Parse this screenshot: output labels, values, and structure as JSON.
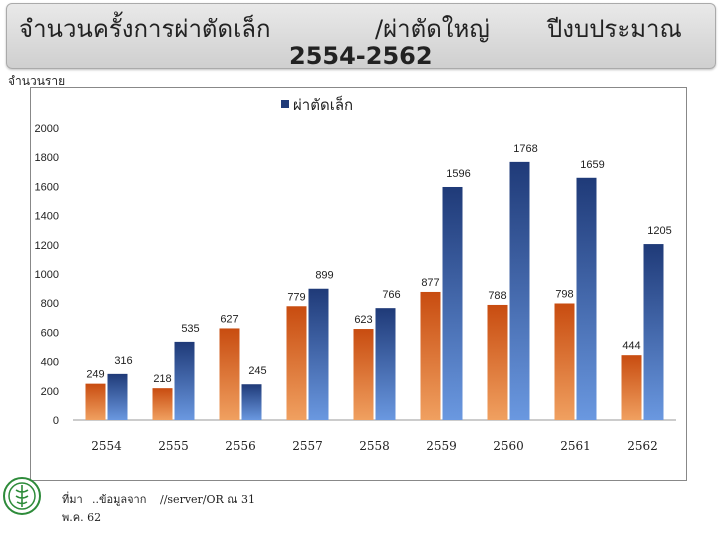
{
  "header": {
    "title_part1": "จำนวนครั้งการผ่าตัดเล็ก",
    "title_part2": "/ผ่าตัดใหญ่",
    "title_part3": "ปีงบประมาณ",
    "title_years": "2554-2562"
  },
  "unit_label": "จำนวนราย",
  "footer": {
    "source_1": "ที่มา",
    "source_2": "..ข้อมูลจาก",
    "source_3": "//server/OR ณ 31",
    "source_4": "พ.ค. 62"
  },
  "colors": {
    "minor_top": "#c84c10",
    "minor_bottom": "#f0a060",
    "major_top": "#1f3a78",
    "major_bottom": "#6a98e0"
  },
  "chart_data": {
    "type": "bar",
    "categories": [
      "2554",
      "2555",
      "2556",
      "2557",
      "2558",
      "2559",
      "2560",
      "2561",
      "2562"
    ],
    "series": [
      {
        "name": "",
        "values": [
          249,
          218,
          627,
          779,
          623,
          877,
          788,
          798,
          444
        ]
      },
      {
        "name": "ผ่าตัดเล็ก",
        "values": [
          316,
          535,
          245,
          899,
          766,
          1596,
          1768,
          1659,
          1205
        ]
      }
    ],
    "legend": [
      "ผ่าตัดเล็ก"
    ],
    "legend_position": "top",
    "yticks": [
      "0",
      "200",
      "400",
      "600",
      "800",
      "1000",
      "1200",
      "1400",
      "1600",
      "1800",
      "2000"
    ],
    "ylim": [
      0,
      2000
    ],
    "grid": false
  }
}
